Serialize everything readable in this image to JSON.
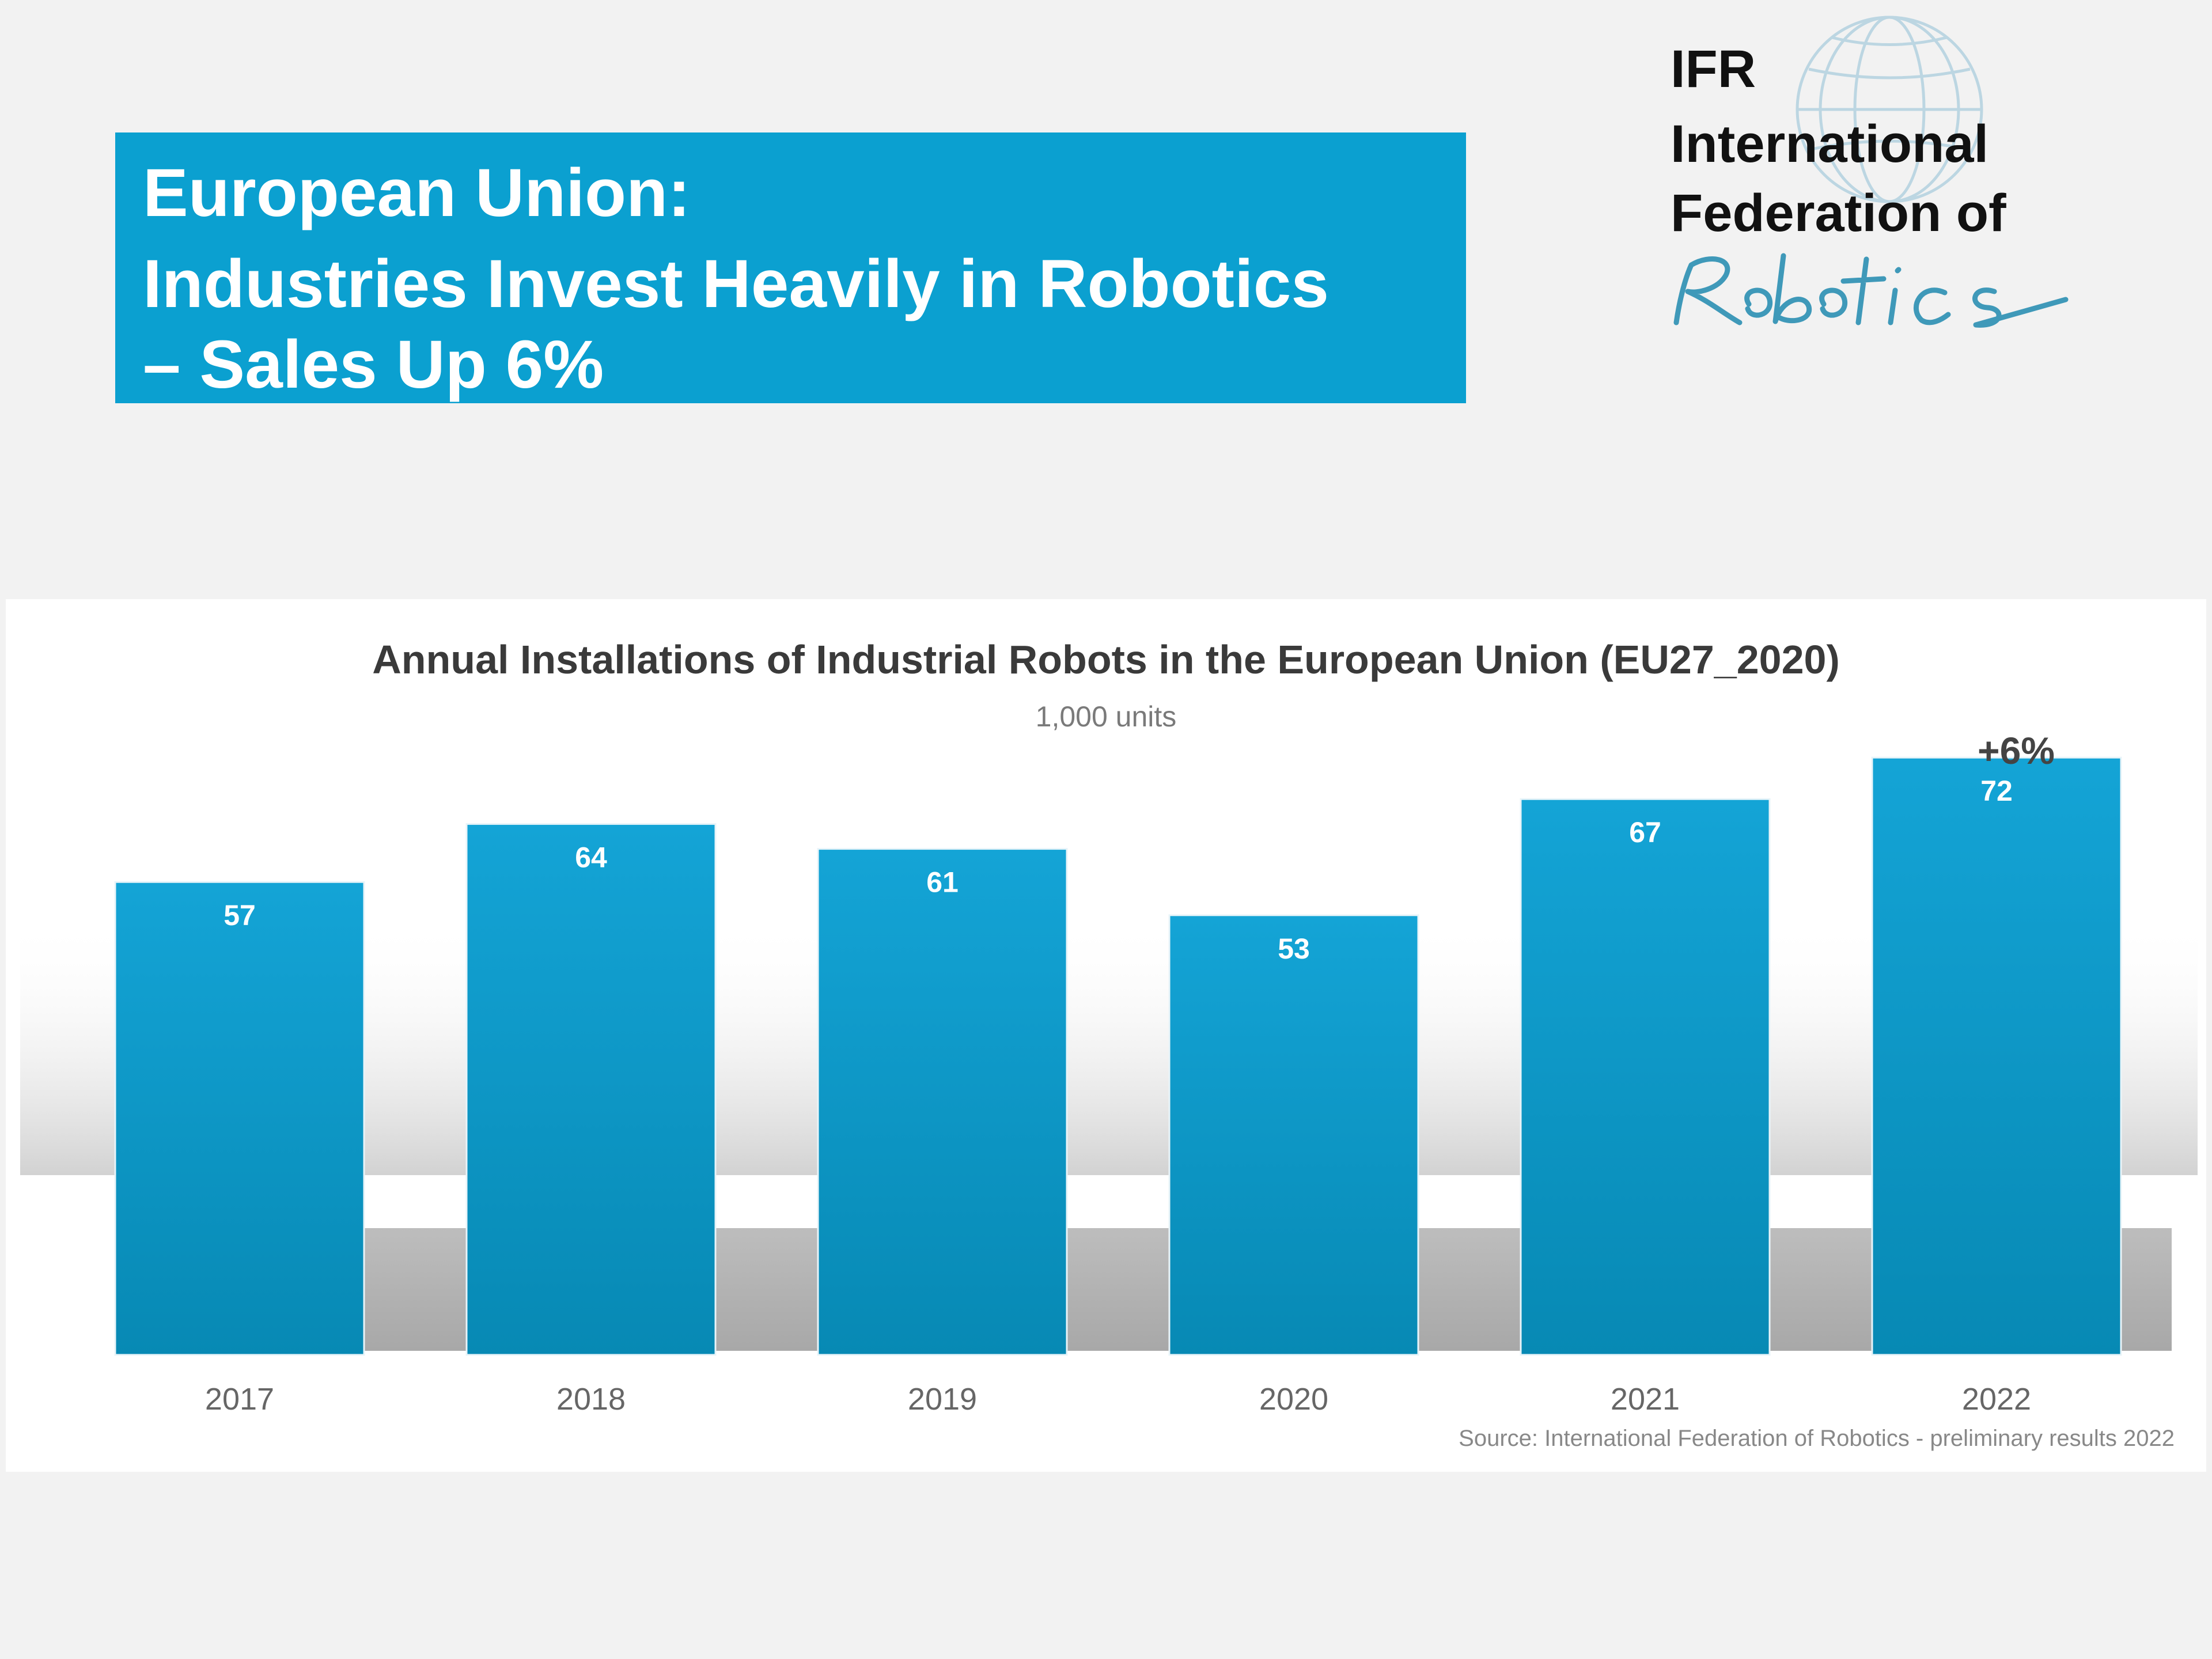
{
  "headline": {
    "line1": "European Union:",
    "line2": "Industries Invest Heavily in Robotics",
    "line3": "– Sales Up 6%"
  },
  "logo": {
    "abbr": "IFR",
    "line1": "International",
    "line2": "Federation of",
    "script_word": "Robotics"
  },
  "colors": {
    "banner": "#0ba0d0",
    "bar_top": "#14a4d6",
    "bar_bottom": "#0789b4"
  },
  "chart_data": {
    "type": "bar",
    "title": "Annual Installations of Industrial Robots in the European Union (EU27_2020)",
    "subtitle": "1,000 units",
    "categories": [
      "2017",
      "2018",
      "2019",
      "2020",
      "2021",
      "2022"
    ],
    "values": [
      57,
      64,
      61,
      53,
      67,
      72
    ],
    "ylim": [
      0,
      80
    ],
    "xlabel": "",
    "ylabel": "1,000 units",
    "annotation": "+6%",
    "source": "Source: International Federation of Robotics - preliminary results 2022",
    "grid": false,
    "legend": "none"
  }
}
